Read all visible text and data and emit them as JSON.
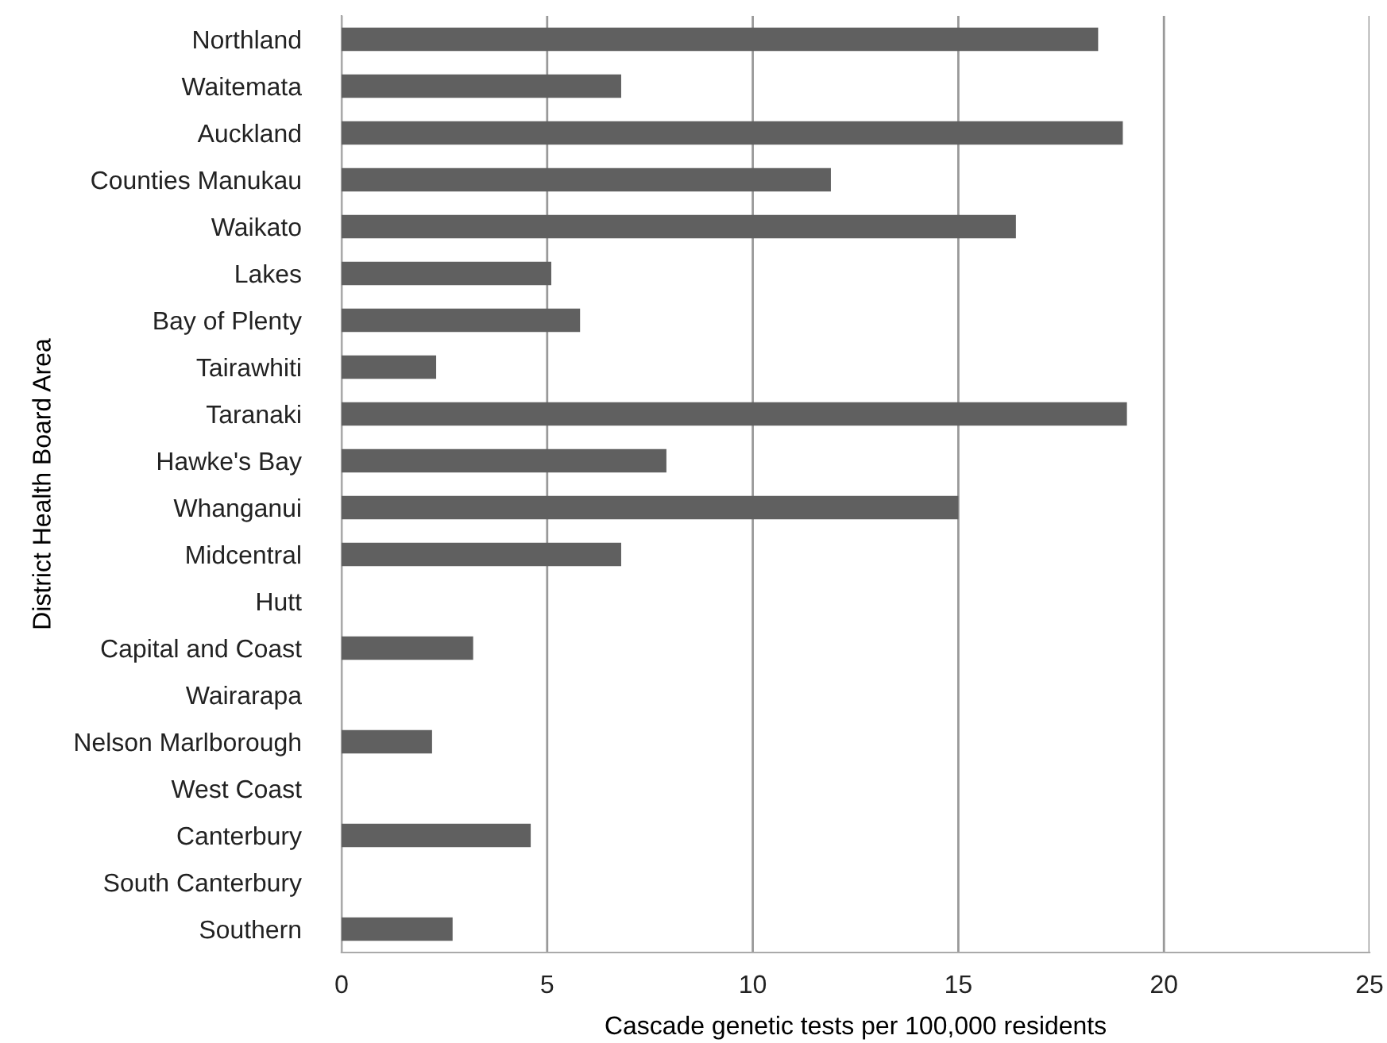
{
  "chart_data": {
    "type": "bar",
    "orientation": "horizontal",
    "xlabel": "Cascade genetic tests per 100,000 residents",
    "ylabel": "District Health Board Area",
    "categories": [
      "Northland",
      "Waitemata",
      "Auckland",
      "Counties Manukau",
      "Waikato",
      "Lakes",
      "Bay of Plenty",
      "Tairawhiti",
      "Taranaki",
      "Hawke's Bay",
      "Whanganui",
      "Midcentral",
      "Hutt",
      "Capital and Coast",
      "Wairarapa",
      "Nelson Marlborough",
      "West Coast",
      "Canterbury",
      "South Canterbury",
      "Southern"
    ],
    "values": [
      18.4,
      6.8,
      19.0,
      11.9,
      16.4,
      5.1,
      5.8,
      2.3,
      19.1,
      7.9,
      15.0,
      6.8,
      0,
      3.2,
      0,
      2.2,
      0,
      4.6,
      0,
      2.7
    ],
    "color": "#606060",
    "xlim": [
      0,
      25
    ],
    "xticks": [
      0,
      5,
      10,
      15,
      20,
      25
    ],
    "grid": "x",
    "legend": false
  }
}
